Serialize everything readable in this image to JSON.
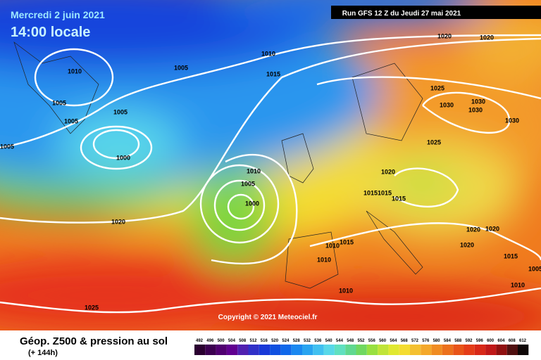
{
  "header": {
    "date": "Mercredi 2 juin 2021",
    "time": "14:00 locale",
    "run": "Run GFS 12 Z du Jeudi 27 mai 2021"
  },
  "copyright": "Copyright © 2021 Meteociel.fr",
  "legend": {
    "title": "Géop. Z500 & pression au sol",
    "subtitle": "(+ 144h)",
    "scale": [
      492,
      496,
      500,
      504,
      508,
      512,
      516,
      520,
      524,
      528,
      532,
      536,
      540,
      544,
      548,
      552,
      556,
      560,
      564,
      568,
      572,
      576,
      580,
      584,
      588,
      592,
      596,
      600,
      604,
      608,
      612
    ]
  },
  "isobar_labels": [
    "1010",
    "1005",
    "1010",
    "1015",
    "1020",
    "1020",
    "1005",
    "1005",
    "1005",
    "1005",
    "1000",
    "1025",
    "1030",
    "1030",
    "1030",
    "1030",
    "1025",
    "1010",
    "1005",
    "1000",
    "1020",
    "1015",
    "1015",
    "1015",
    "1020",
    "1020",
    "1020",
    "1015",
    "1010",
    "1020",
    "1010",
    "1015",
    "1005",
    "1010",
    "1010",
    "1025"
  ]
}
